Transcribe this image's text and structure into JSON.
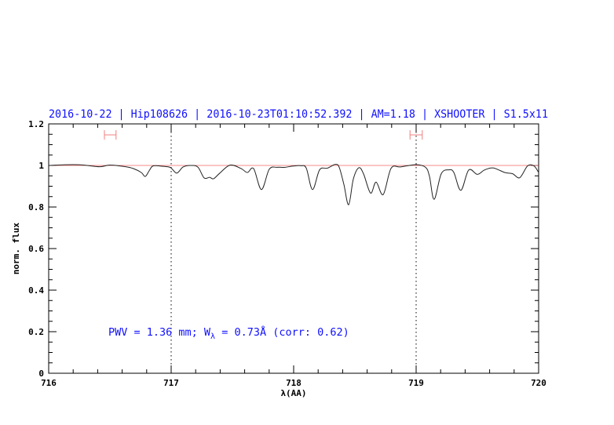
{
  "chart_data": {
    "type": "line",
    "title": "2016-10-22 | Hip108626 | 2016-10-23T01:10:52.392 | AM=1.18 | XSHOOTER | S1.5x11",
    "xlabel": "λ(AA)",
    "ylabel": "norm. flux",
    "xlim": [
      716,
      720
    ],
    "ylim": [
      0,
      1.2
    ],
    "x_ticks": [
      "716",
      "717",
      "718",
      "719",
      "720"
    ],
    "y_ticks": [
      "0",
      "0.2",
      "0.4",
      "0.6",
      "0.8",
      "1",
      "1.2"
    ],
    "grid": false,
    "reference_line": 1.0,
    "vertical_dotted_lines": [
      717,
      719
    ],
    "fit_ranges": [
      [
        716.455,
        716.55
      ],
      [
        718.95,
        719.05
      ]
    ],
    "annotation": {
      "prefix": "PWV = 1.36 mm; W",
      "subscript": "λ",
      "suffix": " = 0.73Å (corr: 0.62)"
    },
    "colors": {
      "title": "#1010ff",
      "annotation": "#1010ff",
      "spectrum": "#000000",
      "continuum": "#f06060",
      "fit_range": "#f08080"
    },
    "series": [
      {
        "x": [
          716.0,
          716.115,
          716.263,
          716.417,
          716.5,
          716.628,
          716.692,
          716.756,
          716.788,
          716.821,
          716.853,
          716.929,
          716.994,
          717.045,
          717.096,
          717.154,
          717.218,
          717.269,
          717.314,
          717.346,
          717.397,
          717.481,
          717.571,
          717.622,
          717.673,
          717.737,
          717.801,
          717.865,
          717.929,
          717.994,
          718.058,
          718.103,
          718.154,
          718.212,
          718.276,
          718.34,
          718.372,
          718.41,
          718.449,
          718.487,
          718.532,
          718.571,
          718.628,
          718.673,
          718.731,
          718.795,
          718.872,
          719.0,
          719.077,
          719.109,
          719.147,
          719.205,
          719.269,
          719.308,
          719.365,
          719.429,
          719.5,
          719.558,
          719.628,
          719.724,
          719.788,
          719.846,
          719.91,
          719.962,
          720.0
        ],
        "y": [
          1.0,
          1.003,
          1.003,
          0.994,
          1.002,
          0.994,
          0.985,
          0.966,
          0.947,
          0.975,
          0.998,
          0.996,
          0.99,
          0.963,
          0.992,
          1.0,
          0.992,
          0.94,
          0.943,
          0.936,
          0.963,
          1.002,
          0.985,
          0.966,
          0.985,
          0.884,
          0.982,
          0.991,
          0.991,
          0.997,
          0.999,
          0.987,
          0.884,
          0.979,
          0.987,
          1.005,
          0.991,
          0.909,
          0.811,
          0.934,
          0.989,
          0.959,
          0.867,
          0.92,
          0.86,
          0.986,
          0.993,
          1.004,
          0.991,
          0.947,
          0.837,
          0.96,
          0.979,
          0.966,
          0.88,
          0.978,
          0.957,
          0.978,
          0.988,
          0.966,
          0.96,
          0.941,
          0.998,
          0.998,
          0.966
        ]
      }
    ]
  }
}
